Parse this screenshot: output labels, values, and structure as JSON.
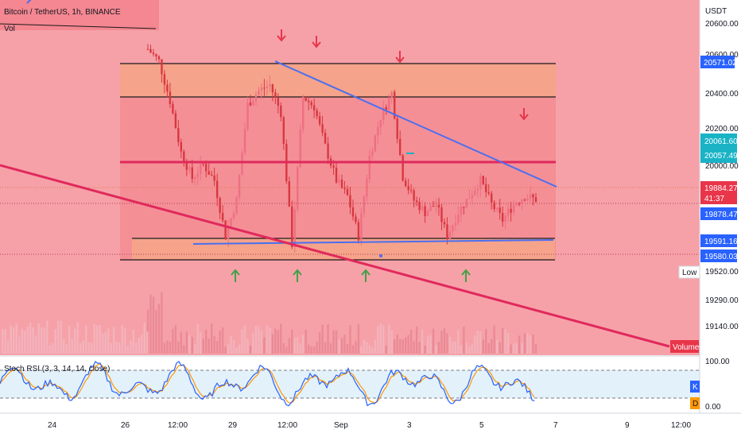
{
  "header": {
    "symbol": "Bitcoin / TetherUS, 1h, BINANCE",
    "vol_label": "Vol",
    "currency": "USDT"
  },
  "price_axis": {
    "ticks": [
      "20600.00",
      "20400.00",
      "20200.00",
      "20000.00",
      "19520.00",
      "19290.00",
      "19140.00"
    ],
    "tag_top": "20571.02",
    "tag_mid1": "20061.60",
    "tag_mid2": "20057.49",
    "tag_current": "19884.27",
    "tag_timer": "41:37",
    "tag_prev": "19878.47",
    "tag_support1": "19591.16",
    "tag_support2": "19580.03",
    "low_label": "Low",
    "volume_label": "Volume"
  },
  "time_axis": {
    "labels": [
      "24",
      "26",
      "12:00",
      "29",
      "12:00",
      "Sep",
      "3",
      "5",
      "7",
      "9",
      "12:00"
    ]
  },
  "stoch": {
    "label": "Stoch RSI (3, 3, 14, 14, close)",
    "ticks": [
      "100.00",
      "0.00"
    ],
    "k_label": "K",
    "d_label": "D"
  },
  "colors": {
    "bg_zone": "#f6a1a8",
    "channel": "#f48f96",
    "resistance_band": "#f5a38a",
    "support_band": "#f5a38a",
    "candle_up": "#ee6f82",
    "candle_down": "#d9373f",
    "trend_blue": "#4a6ff0",
    "magenta": "#e0295c",
    "arrow_down": "#e8354a",
    "arrow_up": "#43a047",
    "stoch_k": "#2962ff",
    "stoch_d": "#ff9800"
  },
  "icons": [
    "arrow-down-icon",
    "arrow-up-icon"
  ],
  "chart_data": {
    "type": "candlestick",
    "symbol": "Bitcoin / TetherUS, 1h, BINANCE",
    "y_unit": "USDT",
    "ylim": [
      19080,
      20700
    ],
    "x_labels": [
      "24",
      "26",
      "12:00",
      "29",
      "12:00",
      "Sep",
      "3",
      "5",
      "7",
      "9",
      "12:00"
    ],
    "close_path": [
      {
        "t": 0,
        "p": 20640
      },
      {
        "t": 4,
        "p": 20580
      },
      {
        "t": 8,
        "p": 20380
      },
      {
        "t": 12,
        "p": 20120
      },
      {
        "t": 16,
        "p": 19990
      },
      {
        "t": 20,
        "p": 20060
      },
      {
        "t": 24,
        "p": 19980
      },
      {
        "t": 28,
        "p": 19700
      },
      {
        "t": 32,
        "p": 19880
      },
      {
        "t": 36,
        "p": 20360
      },
      {
        "t": 40,
        "p": 20430
      },
      {
        "t": 44,
        "p": 20460
      },
      {
        "t": 48,
        "p": 20320
      },
      {
        "t": 52,
        "p": 19660
      },
      {
        "t": 56,
        "p": 20400
      },
      {
        "t": 60,
        "p": 20350
      },
      {
        "t": 64,
        "p": 20150
      },
      {
        "t": 68,
        "p": 19980
      },
      {
        "t": 72,
        "p": 19900
      },
      {
        "t": 76,
        "p": 19700
      },
      {
        "t": 80,
        "p": 20100
      },
      {
        "t": 84,
        "p": 20300
      },
      {
        "t": 88,
        "p": 20420
      },
      {
        "t": 92,
        "p": 20000
      },
      {
        "t": 96,
        "p": 19880
      },
      {
        "t": 100,
        "p": 19820
      },
      {
        "t": 104,
        "p": 19860
      },
      {
        "t": 108,
        "p": 19700
      },
      {
        "t": 112,
        "p": 19820
      },
      {
        "t": 116,
        "p": 19900
      },
      {
        "t": 120,
        "p": 19980
      },
      {
        "t": 124,
        "p": 19860
      },
      {
        "t": 128,
        "p": 19780
      },
      {
        "t": 132,
        "p": 19860
      },
      {
        "t": 136,
        "p": 19900
      },
      {
        "t": 140,
        "p": 19884
      }
    ],
    "levels": {
      "resistance_zone": [
        20400,
        20571.02
      ],
      "mid_line": 20057.49,
      "support_zone": [
        19580.03,
        19591.16
      ],
      "current_price": 19884.27,
      "session_low": 19520.0
    },
    "stoch_rsi": {
      "ylim": [
        0,
        100
      ],
      "overbought": 80,
      "oversold": 20
    }
  }
}
